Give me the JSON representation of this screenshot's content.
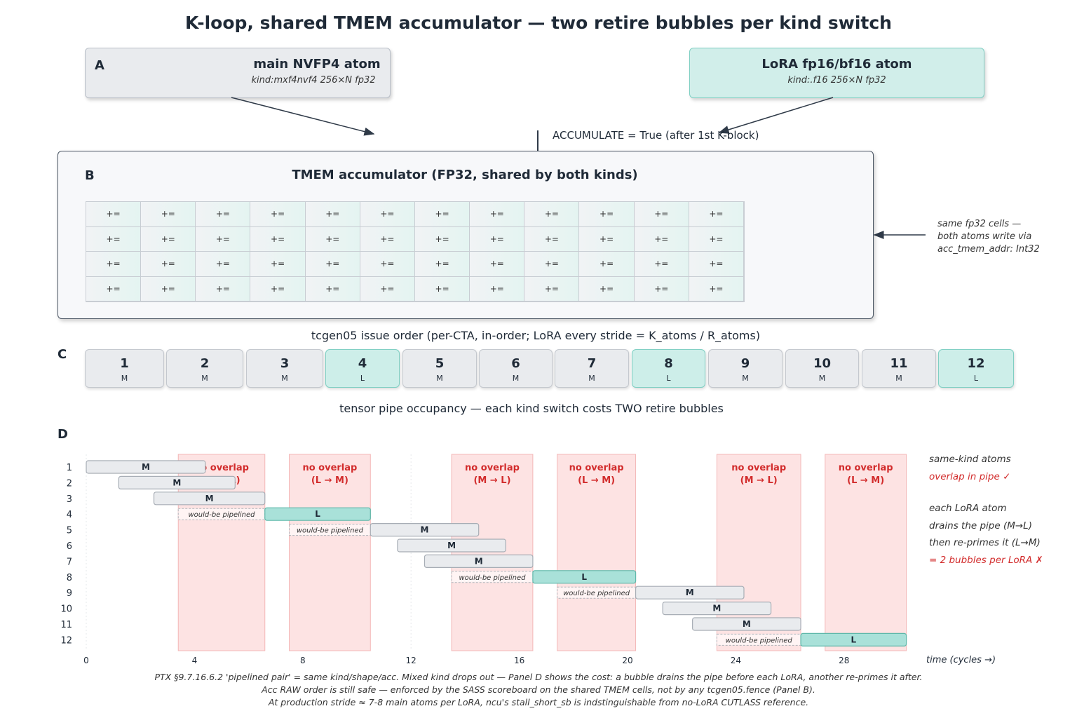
{
  "title": "K-loop, shared TMEM accumulator — two retire bubbles per kind switch",
  "panel_a": {
    "letter": "A",
    "main_atom": {
      "title": "main NVFP4 atom",
      "sub": "kind:mxf4nvf4   256×N fp32"
    },
    "lora_atom": {
      "title": "LoRA fp16/bf16 atom",
      "sub": "kind:.f16   256×N fp32"
    },
    "accumulate_label": "ACCUMULATE = True  (after 1st K-block)"
  },
  "panel_b": {
    "letter": "B",
    "title": "TMEM accumulator  (FP32, shared by both kinds)",
    "cell_text": "+=",
    "rows": 4,
    "cols": 12,
    "side_note": [
      "same fp32 cells —",
      "both atoms write via",
      "acc_tmem_addr: Int32"
    ]
  },
  "issue_label": "tcgen05 issue order  (per-CTA, in-order; LoRA every stride = K_atoms / R_atoms)",
  "panel_c": {
    "letter": "C",
    "chips": [
      {
        "num": "1",
        "kind": "M"
      },
      {
        "num": "2",
        "kind": "M"
      },
      {
        "num": "3",
        "kind": "M"
      },
      {
        "num": "4",
        "kind": "L"
      },
      {
        "num": "5",
        "kind": "M"
      },
      {
        "num": "6",
        "kind": "M"
      },
      {
        "num": "7",
        "kind": "M"
      },
      {
        "num": "8",
        "kind": "L"
      },
      {
        "num": "9",
        "kind": "M"
      },
      {
        "num": "10",
        "kind": "M"
      },
      {
        "num": "11",
        "kind": "M"
      },
      {
        "num": "12",
        "kind": "L"
      }
    ]
  },
  "occupancy_label": "tensor pipe occupancy  —  each kind switch costs TWO retire bubbles",
  "panel_d": {
    "letter": "D",
    "x_axis_label": "time  (cycles →)",
    "x_ticks": [
      0,
      4,
      8,
      12,
      16,
      20,
      24,
      28
    ],
    "x_range": [
      0,
      31
    ],
    "rows": [
      "1",
      "2",
      "3",
      "4",
      "5",
      "6",
      "7",
      "8",
      "9",
      "10",
      "11",
      "12"
    ],
    "bubbles": [
      {
        "start": 3.4,
        "end": 6.6,
        "label1": "no overlap",
        "label2": "(M → L)"
      },
      {
        "start": 7.5,
        "end": 10.5,
        "label1": "no overlap",
        "label2": "(L → M)"
      },
      {
        "start": 13.5,
        "end": 16.5,
        "label1": "no overlap",
        "label2": "(M → L)"
      },
      {
        "start": 17.4,
        "end": 20.3,
        "label1": "no overlap",
        "label2": "(L → M)"
      },
      {
        "start": 23.3,
        "end": 26.4,
        "label1": "no overlap",
        "label2": "(M → L)"
      },
      {
        "start": 27.3,
        "end": 30.3,
        "label1": "no overlap",
        "label2": "(L → M)"
      }
    ],
    "bars": [
      {
        "row": 1,
        "kind": "M",
        "start": 0.0,
        "end": 4.4
      },
      {
        "row": 2,
        "kind": "M",
        "start": 1.2,
        "end": 5.5
      },
      {
        "row": 3,
        "kind": "M",
        "start": 2.5,
        "end": 6.6
      },
      {
        "row": 4,
        "kind": "L",
        "start": 6.6,
        "end": 10.5
      },
      {
        "row": 5,
        "kind": "M",
        "start": 10.5,
        "end": 14.5
      },
      {
        "row": 6,
        "kind": "M",
        "start": 11.5,
        "end": 15.5
      },
      {
        "row": 7,
        "kind": "M",
        "start": 12.5,
        "end": 16.5
      },
      {
        "row": 8,
        "kind": "L",
        "start": 16.5,
        "end": 20.3
      },
      {
        "row": 9,
        "kind": "M",
        "start": 20.3,
        "end": 24.3
      },
      {
        "row": 10,
        "kind": "M",
        "start": 21.3,
        "end": 25.3
      },
      {
        "row": 11,
        "kind": "M",
        "start": 22.4,
        "end": 26.4
      },
      {
        "row": 12,
        "kind": "L",
        "start": 26.4,
        "end": 30.3
      }
    ],
    "ghosts": [
      {
        "row": 4,
        "start": 3.4,
        "end": 6.6,
        "label": "would-be pipelined"
      },
      {
        "row": 5,
        "start": 7.5,
        "end": 10.5,
        "label": "would-be pipelined"
      },
      {
        "row": 8,
        "start": 13.5,
        "end": 16.5,
        "label": "would-be pipelined"
      },
      {
        "row": 9,
        "start": 17.4,
        "end": 20.3,
        "label": "would-be pipelined"
      },
      {
        "row": 12,
        "start": 23.3,
        "end": 26.4,
        "label": "would-be pipelined"
      }
    ],
    "legend": {
      "line1": "same-kind atoms",
      "line2": "overlap in pipe   ✓",
      "line3": "each LoRA atom",
      "line4": "drains the pipe (M→L)",
      "line5": "then re-primes it (L→M)",
      "line6": "= 2 bubbles per LoRA   ✗"
    }
  },
  "footer": [
    "PTX §9.7.16.6.2 'pipelined pair' = same kind/shape/acc. Mixed kind drops out — Panel D shows the cost: a bubble drains the pipe before each LoRA, another re-primes it after.",
    "Acc RAW order is still safe — enforced by the SASS scoreboard on the shared TMEM cells, not by any tcgen05.fence (Panel B).",
    "At production stride ≈ 7-8 main atoms per LoRA, ncu's stall_short_sb is indstinguishable from no-LoRA CUTLASS reference."
  ],
  "colors": {
    "main": "#e9ebee",
    "lora": "#a9e1d9",
    "bubble": "#fde3e3",
    "bubble_text": "#d22c2c",
    "dark": "#1f2a37"
  }
}
